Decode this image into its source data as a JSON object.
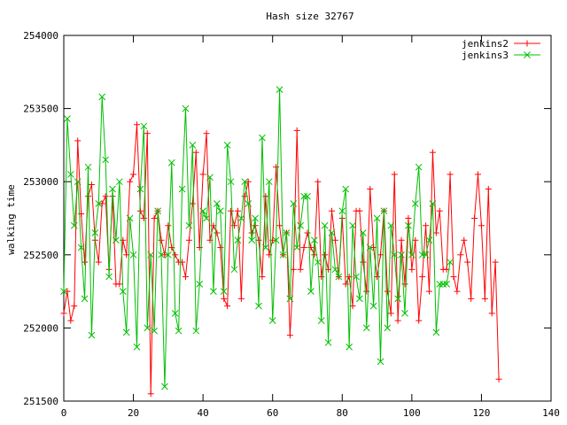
{
  "chart_data": {
    "type": "line",
    "title": "Hash size 32767",
    "xlabel": "",
    "ylabel": "walking time",
    "xlim": [
      0,
      140
    ],
    "ylim": [
      251500,
      254000
    ],
    "x_ticks": [
      0,
      20,
      40,
      60,
      80,
      100,
      120,
      140
    ],
    "y_ticks": [
      251500,
      252000,
      252500,
      253000,
      253500,
      254000
    ],
    "x_tick_labels": [
      "0",
      "20",
      "40",
      "60",
      "80",
      "100",
      "120",
      "140"
    ],
    "y_tick_labels": [
      "251500",
      "252000",
      "252500",
      "253000",
      "253500",
      "254000"
    ],
    "grid": false,
    "legend_position": "top-right",
    "series": [
      {
        "name": "jenkins2",
        "color": "#ff0000",
        "marker": "plus",
        "values": [
          252100,
          252250,
          252050,
          252150,
          253280,
          252780,
          252450,
          252900,
          252980,
          252600,
          252450,
          252850,
          252900,
          252400,
          252900,
          252300,
          252300,
          252600,
          252500,
          253000,
          253050,
          253390,
          252800,
          252750,
          253330,
          251550,
          252750,
          252800,
          252600,
          252500,
          252700,
          252550,
          252500,
          252450,
          252450,
          252350,
          252600,
          252850,
          253200,
          252550,
          253050,
          253330,
          252600,
          252700,
          252650,
          252550,
          252200,
          252150,
          252800,
          252700,
          252800,
          252200,
          252900,
          253000,
          252650,
          252700,
          252600,
          252350,
          252900,
          252500,
          252600,
          253100,
          252700,
          252500,
          252650,
          251950,
          252400,
          253350,
          252400,
          252550,
          252650,
          252550,
          252500,
          253000,
          252350,
          252500,
          252400,
          252800,
          252600,
          252350,
          252750,
          252300,
          252350,
          252150,
          252800,
          252800,
          252450,
          252250,
          252950,
          252550,
          252350,
          252500,
          252800,
          252250,
          252100,
          253050,
          252050,
          252600,
          252300,
          252750,
          252400,
          252600,
          252050,
          252350,
          252700,
          252250,
          253200,
          252650,
          252800,
          252400,
          252400,
          253050,
          252350,
          252250,
          252500,
          252600,
          252450,
          252200,
          252750,
          253050,
          252700,
          252200,
          252950,
          252100,
          252450,
          251650
        ]
      },
      {
        "name": "jenkins3",
        "color": "#00c000",
        "marker": "x",
        "values": [
          252250,
          253430,
          253050,
          252700,
          253000,
          252550,
          252200,
          253100,
          251950,
          252650,
          252850,
          253580,
          253150,
          252350,
          252950,
          252600,
          253000,
          252250,
          251970,
          252750,
          252500,
          251870,
          252950,
          253380,
          252000,
          252500,
          251980,
          252800,
          252500,
          251600,
          252500,
          253130,
          252100,
          251980,
          252950,
          253500,
          252700,
          253250,
          251980,
          252300,
          252800,
          252750,
          253030,
          252250,
          252850,
          252800,
          252250,
          253250,
          253000,
          252400,
          252600,
          252750,
          253000,
          252850,
          252600,
          252750,
          252150,
          253300,
          252550,
          253000,
          252050,
          252600,
          253630,
          252500,
          252650,
          252200,
          252850,
          252550,
          252700,
          252900,
          252900,
          252250,
          252600,
          252450,
          252050,
          252700,
          251900,
          252650,
          252400,
          252350,
          252800,
          252950,
          251870,
          252700,
          252350,
          252200,
          252650,
          252000,
          252550,
          252150,
          252750,
          251770,
          252800,
          252000,
          252700,
          252500,
          252200,
          252500,
          252100,
          252700,
          252500,
          252850,
          253100,
          252500,
          252500,
          252600,
          252850,
          251970,
          252300,
          252300,
          252300,
          252450
        ]
      }
    ]
  }
}
